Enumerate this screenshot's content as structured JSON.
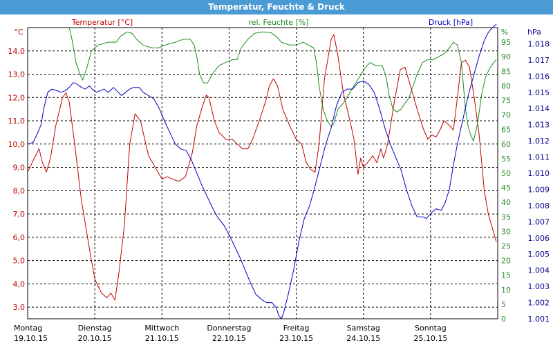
{
  "window": {
    "title": "Temperatur, Feuchte & Druck"
  },
  "chart_data": {
    "type": "line",
    "title": "Temperatur, Feuchte & Druck",
    "legend": [
      "Temperatur [°C]",
      "rel. Feuchte [%]",
      "Druck [hPa]"
    ],
    "units": {
      "left": "°C",
      "right_inner": "%",
      "right_outer": "hPa"
    },
    "x_range": [
      0,
      7
    ],
    "x_ticks": [
      {
        "day": "Montag",
        "date": "19.10.15"
      },
      {
        "day": "Dienstag",
        "date": "20.10.15"
      },
      {
        "day": "Mittwoch",
        "date": "21.10.15"
      },
      {
        "day": "Donnerstag",
        "date": "22.10.15"
      },
      {
        "day": "Freitag",
        "date": "23.10.15"
      },
      {
        "day": "Samstag",
        "date": "24.10.15"
      },
      {
        "day": "Sonntag",
        "date": "25.10.15"
      }
    ],
    "y_left": {
      "range": [
        2.5,
        15
      ],
      "ticks": [
        "3,0",
        "4,0",
        "5,0",
        "6,0",
        "7,0",
        "8,0",
        "9,0",
        "10,0",
        "11,0",
        "12,0",
        "13,0",
        "14,0"
      ]
    },
    "y_right_inner": {
      "range": [
        0,
        100
      ],
      "ticks": [
        "0",
        "5",
        "10",
        "15",
        "20",
        "25",
        "30",
        "35",
        "40",
        "45",
        "50",
        "55",
        "60",
        "65",
        "70",
        "75",
        "80",
        "85",
        "90",
        "95"
      ]
    },
    "y_right_outer": {
      "range": [
        1.001,
        1.019
      ],
      "ticks": [
        "1.001",
        "1.002",
        "1.003",
        "1.004",
        "1.005",
        "1.006",
        "1.007",
        "1.008",
        "1.009",
        "1.010",
        "1.011",
        "1.012",
        "1.013",
        "1.014",
        "1.015",
        "1.016",
        "1.017",
        "1.018"
      ]
    },
    "grid": true,
    "colors": {
      "temperature": "#c00000",
      "humidity": "#1a8a1a",
      "pressure": "#0000c0",
      "temperature_axis": "#c00000",
      "humidity_axis": "#2a8a2a",
      "pressure_axis": "#00008b",
      "grid": "#000000"
    },
    "series": [
      {
        "name": "Temperatur [°C]",
        "axis": "left",
        "color": "#c00000",
        "points": [
          [
            0.0,
            8.8
          ],
          [
            0.1,
            9.4
          ],
          [
            0.17,
            9.8
          ],
          [
            0.22,
            9.2
          ],
          [
            0.28,
            8.8
          ],
          [
            0.34,
            9.4
          ],
          [
            0.42,
            10.8
          ],
          [
            0.52,
            12.0
          ],
          [
            0.57,
            12.2
          ],
          [
            0.62,
            11.8
          ],
          [
            0.7,
            10.0
          ],
          [
            0.8,
            7.6
          ],
          [
            0.92,
            5.5
          ],
          [
            1.0,
            4.2
          ],
          [
            1.1,
            3.6
          ],
          [
            1.18,
            3.4
          ],
          [
            1.24,
            3.6
          ],
          [
            1.3,
            3.3
          ],
          [
            1.36,
            4.5
          ],
          [
            1.44,
            6.5
          ],
          [
            1.52,
            10.0
          ],
          [
            1.6,
            11.3
          ],
          [
            1.68,
            11.0
          ],
          [
            1.8,
            9.5
          ],
          [
            1.9,
            9.0
          ],
          [
            2.0,
            8.5
          ],
          [
            2.08,
            8.6
          ],
          [
            2.15,
            8.5
          ],
          [
            2.25,
            8.4
          ],
          [
            2.35,
            8.6
          ],
          [
            2.45,
            9.6
          ],
          [
            2.52,
            10.8
          ],
          [
            2.6,
            11.6
          ],
          [
            2.66,
            12.1
          ],
          [
            2.7,
            12.0
          ],
          [
            2.78,
            11.0
          ],
          [
            2.85,
            10.5
          ],
          [
            2.95,
            10.2
          ],
          [
            3.05,
            10.2
          ],
          [
            3.12,
            10.0
          ],
          [
            3.2,
            9.8
          ],
          [
            3.28,
            9.8
          ],
          [
            3.35,
            10.2
          ],
          [
            3.45,
            11.0
          ],
          [
            3.55,
            11.9
          ],
          [
            3.6,
            12.5
          ],
          [
            3.66,
            12.8
          ],
          [
            3.72,
            12.5
          ],
          [
            3.8,
            11.5
          ],
          [
            3.9,
            10.8
          ],
          [
            4.0,
            10.2
          ],
          [
            4.08,
            10.0
          ],
          [
            4.15,
            9.2
          ],
          [
            4.22,
            8.9
          ],
          [
            4.28,
            8.8
          ],
          [
            4.34,
            10.0
          ],
          [
            4.42,
            12.8
          ],
          [
            4.52,
            14.5
          ],
          [
            4.56,
            14.7
          ],
          [
            4.62,
            13.8
          ],
          [
            4.7,
            12.2
          ],
          [
            4.8,
            11.0
          ],
          [
            4.86,
            10.2
          ],
          [
            4.92,
            8.7
          ],
          [
            4.96,
            9.4
          ],
          [
            5.0,
            9.0
          ],
          [
            5.06,
            9.2
          ],
          [
            5.14,
            9.5
          ],
          [
            5.2,
            9.2
          ],
          [
            5.26,
            9.8
          ],
          [
            5.3,
            9.4
          ],
          [
            5.36,
            10.0
          ],
          [
            5.46,
            11.8
          ],
          [
            5.55,
            13.2
          ],
          [
            5.62,
            13.3
          ],
          [
            5.7,
            12.5
          ],
          [
            5.8,
            11.5
          ],
          [
            5.9,
            10.6
          ],
          [
            5.96,
            10.2
          ],
          [
            6.02,
            10.4
          ],
          [
            6.08,
            10.3
          ],
          [
            6.14,
            10.6
          ],
          [
            6.2,
            11.0
          ],
          [
            6.28,
            10.8
          ],
          [
            6.34,
            10.6
          ],
          [
            6.4,
            12.0
          ],
          [
            6.46,
            13.5
          ],
          [
            6.52,
            13.6
          ],
          [
            6.58,
            13.3
          ],
          [
            6.65,
            12.0
          ],
          [
            6.72,
            10.5
          ],
          [
            6.8,
            8.0
          ],
          [
            6.86,
            7.0
          ],
          [
            6.92,
            6.4
          ],
          [
            6.98,
            5.8
          ]
        ]
      },
      {
        "name": "rel. Feuchte [%]",
        "axis": "right_inner",
        "color": "#1a8a1a",
        "points": [
          [
            0.62,
            100
          ],
          [
            0.66,
            96
          ],
          [
            0.72,
            88
          ],
          [
            0.78,
            84
          ],
          [
            0.82,
            82
          ],
          [
            0.88,
            86
          ],
          [
            0.95,
            92
          ],
          [
            1.05,
            94
          ],
          [
            1.2,
            95
          ],
          [
            1.32,
            95
          ],
          [
            1.38,
            97
          ],
          [
            1.48,
            98.5
          ],
          [
            1.56,
            98
          ],
          [
            1.62,
            96
          ],
          [
            1.72,
            94
          ],
          [
            1.85,
            93
          ],
          [
            1.95,
            93
          ],
          [
            2.05,
            94
          ],
          [
            2.2,
            95
          ],
          [
            2.32,
            96
          ],
          [
            2.42,
            96
          ],
          [
            2.48,
            94
          ],
          [
            2.52,
            90
          ],
          [
            2.56,
            84
          ],
          [
            2.62,
            81
          ],
          [
            2.68,
            81
          ],
          [
            2.75,
            84
          ],
          [
            2.85,
            87
          ],
          [
            2.95,
            88
          ],
          [
            3.05,
            89
          ],
          [
            3.12,
            89
          ],
          [
            3.18,
            93
          ],
          [
            3.28,
            96
          ],
          [
            3.38,
            98
          ],
          [
            3.5,
            98.5
          ],
          [
            3.62,
            98.3
          ],
          [
            3.7,
            97
          ],
          [
            3.78,
            95
          ],
          [
            3.9,
            94
          ],
          [
            4.0,
            94
          ],
          [
            4.1,
            95
          ],
          [
            4.18,
            94
          ],
          [
            4.26,
            93
          ],
          [
            4.3,
            88
          ],
          [
            4.34,
            80
          ],
          [
            4.4,
            72
          ],
          [
            4.46,
            68
          ],
          [
            4.52,
            66
          ],
          [
            4.56,
            67
          ],
          [
            4.62,
            72
          ],
          [
            4.7,
            74
          ],
          [
            4.78,
            77
          ],
          [
            4.86,
            80
          ],
          [
            4.94,
            83
          ],
          [
            5.02,
            86
          ],
          [
            5.1,
            88
          ],
          [
            5.18,
            87
          ],
          [
            5.28,
            87
          ],
          [
            5.34,
            83
          ],
          [
            5.38,
            77
          ],
          [
            5.44,
            72
          ],
          [
            5.5,
            71
          ],
          [
            5.56,
            72
          ],
          [
            5.62,
            74
          ],
          [
            5.68,
            76
          ],
          [
            5.74,
            80
          ],
          [
            5.8,
            84
          ],
          [
            5.88,
            88
          ],
          [
            5.96,
            89
          ],
          [
            6.04,
            89
          ],
          [
            6.12,
            90
          ],
          [
            6.2,
            91
          ],
          [
            6.28,
            93
          ],
          [
            6.34,
            95
          ],
          [
            6.4,
            94
          ],
          [
            6.46,
            88
          ],
          [
            6.52,
            72
          ],
          [
            6.56,
            66
          ],
          [
            6.6,
            63
          ],
          [
            6.64,
            61
          ],
          [
            6.7,
            67
          ],
          [
            6.76,
            77
          ],
          [
            6.82,
            83
          ],
          [
            6.88,
            86
          ],
          [
            6.94,
            88
          ],
          [
            6.98,
            89
          ]
        ]
      },
      {
        "name": "Druck [hPa]",
        "axis": "right_outer",
        "color": "#0000c0",
        "points": [
          [
            0.0,
            1.0118
          ],
          [
            0.08,
            1.0119
          ],
          [
            0.15,
            1.0125
          ],
          [
            0.2,
            1.013
          ],
          [
            0.24,
            1.014
          ],
          [
            0.3,
            1.015
          ],
          [
            0.36,
            1.0152
          ],
          [
            0.44,
            1.0151
          ],
          [
            0.5,
            1.015
          ],
          [
            0.56,
            1.0151
          ],
          [
            0.62,
            1.0153
          ],
          [
            0.68,
            1.0156
          ],
          [
            0.74,
            1.0155
          ],
          [
            0.8,
            1.0153
          ],
          [
            0.86,
            1.0152
          ],
          [
            0.92,
            1.0154
          ],
          [
            0.96,
            1.0152
          ],
          [
            1.02,
            1.015
          ],
          [
            1.08,
            1.0151
          ],
          [
            1.14,
            1.0152
          ],
          [
            1.2,
            1.015
          ],
          [
            1.28,
            1.0153
          ],
          [
            1.35,
            1.015
          ],
          [
            1.4,
            1.0148
          ],
          [
            1.46,
            1.015
          ],
          [
            1.52,
            1.0152
          ],
          [
            1.58,
            1.0153
          ],
          [
            1.66,
            1.0153
          ],
          [
            1.72,
            1.015
          ],
          [
            1.8,
            1.0148
          ],
          [
            1.88,
            1.0146
          ],
          [
            1.96,
            1.014
          ],
          [
            2.04,
            1.0132
          ],
          [
            2.12,
            1.0125
          ],
          [
            2.2,
            1.0118
          ],
          [
            2.28,
            1.0115
          ],
          [
            2.36,
            1.0114
          ],
          [
            2.44,
            1.0108
          ],
          [
            2.52,
            1.01
          ],
          [
            2.6,
            1.0092
          ],
          [
            2.68,
            1.0085
          ],
          [
            2.76,
            1.0078
          ],
          [
            2.84,
            1.0072
          ],
          [
            2.92,
            1.0068
          ],
          [
            3.0,
            1.0062
          ],
          [
            3.08,
            1.0055
          ],
          [
            3.16,
            1.0048
          ],
          [
            3.24,
            1.004
          ],
          [
            3.32,
            1.0032
          ],
          [
            3.4,
            1.0025
          ],
          [
            3.48,
            1.0022
          ],
          [
            3.56,
            1.002
          ],
          [
            3.64,
            1.002
          ],
          [
            3.7,
            1.0017
          ],
          [
            3.74,
            1.0012
          ],
          [
            3.78,
            1.001
          ],
          [
            3.82,
            1.0015
          ],
          [
            3.88,
            1.0025
          ],
          [
            3.96,
            1.004
          ],
          [
            4.04,
            1.0058
          ],
          [
            4.12,
            1.0072
          ],
          [
            4.2,
            1.008
          ],
          [
            4.28,
            1.0092
          ],
          [
            4.36,
            1.0105
          ],
          [
            4.44,
            1.0118
          ],
          [
            4.52,
            1.0128
          ],
          [
            4.6,
            1.0142
          ],
          [
            4.68,
            1.015
          ],
          [
            4.76,
            1.0152
          ],
          [
            4.84,
            1.0152
          ],
          [
            4.92,
            1.0156
          ],
          [
            5.0,
            1.0157
          ],
          [
            5.08,
            1.0155
          ],
          [
            5.16,
            1.015
          ],
          [
            5.24,
            1.014
          ],
          [
            5.32,
            1.0128
          ],
          [
            5.4,
            1.0118
          ],
          [
            5.48,
            1.011
          ],
          [
            5.56,
            1.0102
          ],
          [
            5.64,
            1.009
          ],
          [
            5.72,
            1.008
          ],
          [
            5.8,
            1.0073
          ],
          [
            5.88,
            1.0073
          ],
          [
            5.94,
            1.0072
          ],
          [
            6.0,
            1.0075
          ],
          [
            6.08,
            1.0078
          ],
          [
            6.16,
            1.0077
          ],
          [
            6.22,
            1.0082
          ],
          [
            6.28,
            1.009
          ],
          [
            6.34,
            1.0105
          ],
          [
            6.4,
            1.0118
          ],
          [
            6.48,
            1.0133
          ],
          [
            6.56,
            1.0148
          ],
          [
            6.64,
            1.016
          ],
          [
            6.72,
            1.0172
          ],
          [
            6.8,
            1.0182
          ],
          [
            6.86,
            1.0187
          ],
          [
            6.92,
            1.019
          ],
          [
            6.98,
            1.0192
          ]
        ]
      }
    ]
  }
}
